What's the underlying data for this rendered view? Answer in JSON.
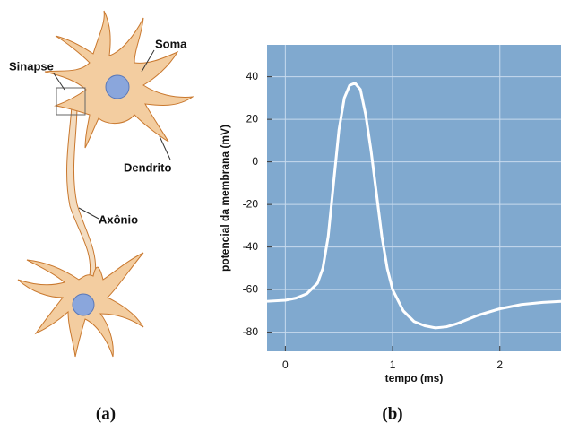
{
  "diagram": {
    "labels": [
      "Soma",
      "Sinapse",
      "Dendrito",
      "Axônio"
    ],
    "caption": "(a)"
  },
  "chart_data": {
    "type": "line",
    "caption": "(b)",
    "xlabel": "tempo (ms)",
    "ylabel": "potencial da membrana (mV)",
    "x": [
      -0.17,
      0,
      0.1,
      0.2,
      0.3,
      0.35,
      0.4,
      0.45,
      0.5,
      0.55,
      0.6,
      0.65,
      0.7,
      0.75,
      0.8,
      0.85,
      0.9,
      0.95,
      1.0,
      1.1,
      1.2,
      1.3,
      1.4,
      1.5,
      1.6,
      1.8,
      2.0,
      2.2,
      2.4,
      2.57
    ],
    "series": [
      {
        "color": "#ffffff",
        "values": [
          -65.5,
          -65,
          -64,
          -62,
          -57,
          -50,
          -35,
          -10,
          15,
          30,
          36,
          37,
          34,
          22,
          5,
          -15,
          -35,
          -50,
          -60,
          -70,
          -75,
          -77,
          -78,
          -77.5,
          -76,
          -72,
          -69,
          -67,
          -66,
          -65.5
        ]
      }
    ],
    "xlim": [
      -0.17,
      2.57
    ],
    "ylim": [
      -89,
      55
    ],
    "xticks": [
      0,
      1,
      2
    ],
    "yticks": [
      40,
      20,
      0,
      -20,
      -40,
      -60,
      -80
    ],
    "grid": true,
    "background": "#80a9cf"
  }
}
